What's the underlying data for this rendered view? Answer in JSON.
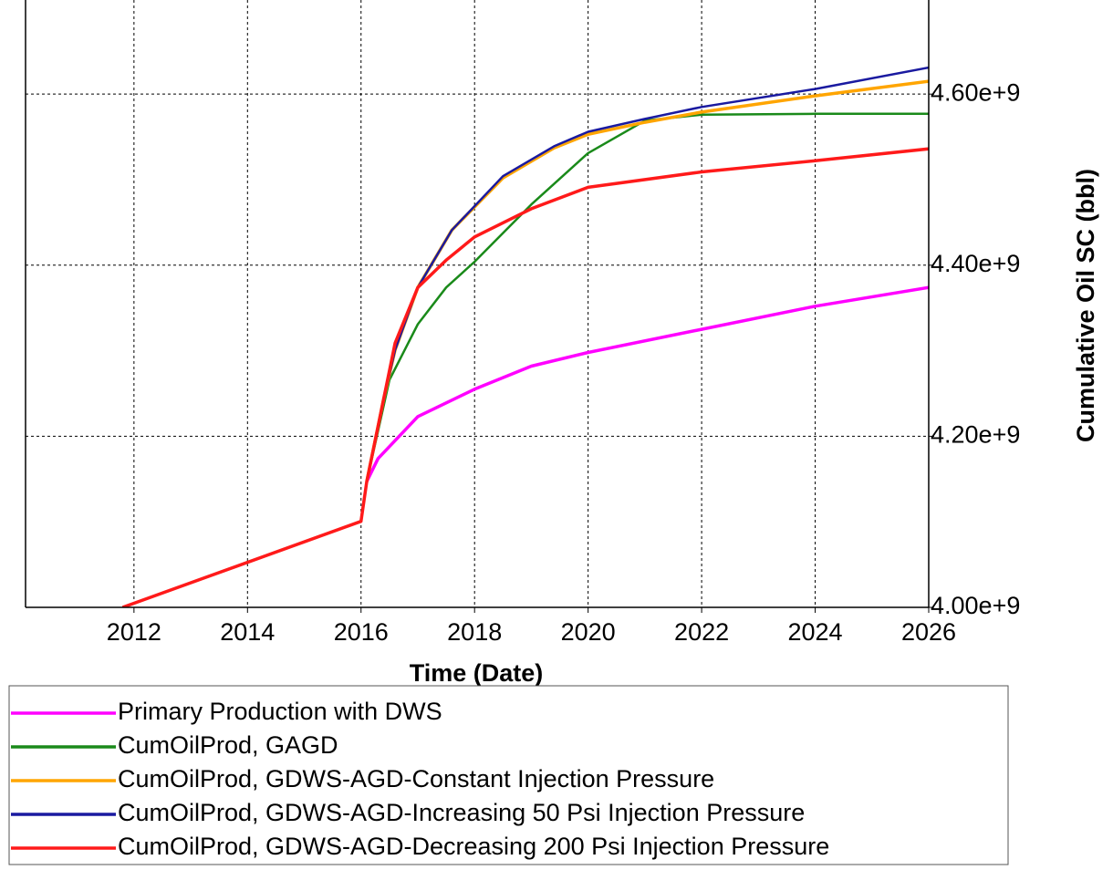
{
  "chart_data": {
    "type": "line",
    "x_label": "Time (Date)",
    "y_label": "Cumulative Oil SC (bbl)",
    "xlim": [
      2010.09,
      2026
    ],
    "xticks": [
      2012,
      2014,
      2016,
      2018,
      2020,
      2022,
      2024,
      2026
    ],
    "ylim": [
      4000000000,
      4710000000
    ],
    "yticks": [
      {
        "value": 4000000000,
        "label": "4.00e+9"
      },
      {
        "value": 4200000000,
        "label": "4.20e+9"
      },
      {
        "value": 4400000000,
        "label": "4.40e+9"
      },
      {
        "value": 4600000000,
        "label": "4.60e+9"
      }
    ],
    "y_axis_side": "right",
    "grid": true,
    "legend": "below",
    "series": [
      {
        "name": "Primary Production with DWS",
        "color": "#ff00ff",
        "x": [
          2016.1,
          2016.3,
          2017,
          2018,
          2019,
          2020,
          2022,
          2024,
          2026
        ],
        "values": [
          4147000000,
          4174000000,
          4223000000,
          4255000000,
          4282000000,
          4298000000,
          4325000000,
          4352000000,
          4374000000
        ]
      },
      {
        "name": "CumOilProd, GAGD",
        "color": "#1a8a1a",
        "x": [
          2016.1,
          2016.5,
          2017,
          2017.5,
          2018,
          2019,
          2020,
          2021,
          2022,
          2024,
          2026
        ],
        "values": [
          4147000000,
          4266000000,
          4331000000,
          4374000000,
          4404000000,
          4471000000,
          4531000000,
          4569000000,
          4576000000,
          4577000000,
          4577000000
        ]
      },
      {
        "name": "CumOilProd, GDWS-AGD-Constant Injection Pressure",
        "color": "#ffa500",
        "x": [
          2016.1,
          2016.4,
          2016.6,
          2017,
          2017.6,
          2018.5,
          2019.4,
          2020,
          2021,
          2022,
          2024,
          2026
        ],
        "values": [
          4147000000,
          4244000000,
          4301000000,
          4374000000,
          4441000000,
          4502000000,
          4537000000,
          4553000000,
          4567000000,
          4579000000,
          4598000000,
          4615000000
        ]
      },
      {
        "name": "CumOilProd, GDWS-AGD-Increasing 50 Psi Injection Pressure",
        "color": "#1a1aa0",
        "x": [
          2016.1,
          2016.4,
          2016.6,
          2017,
          2017.6,
          2018.5,
          2019.4,
          2020,
          2021,
          2022,
          2024,
          2026
        ],
        "values": [
          4147000000,
          4244000000,
          4301000000,
          4374000000,
          4441000000,
          4504000000,
          4539000000,
          4556000000,
          4571000000,
          4585000000,
          4606000000,
          4631000000
        ]
      },
      {
        "name": "CumOilProd, GDWS-AGD-Decreasing 200 Psi Injection Pressure",
        "color": "#ff1a1a",
        "x": [
          2011.8,
          2016.0,
          2016.1,
          2016.6,
          2017,
          2017.5,
          2018,
          2019,
          2020,
          2022,
          2024,
          2026
        ],
        "values": [
          4000000000,
          4100500000,
          4147000000,
          4309000000,
          4374000000,
          4406000000,
          4433000000,
          4466000000,
          4491000000,
          4509000000,
          4522000000,
          4536000000
        ]
      }
    ]
  }
}
